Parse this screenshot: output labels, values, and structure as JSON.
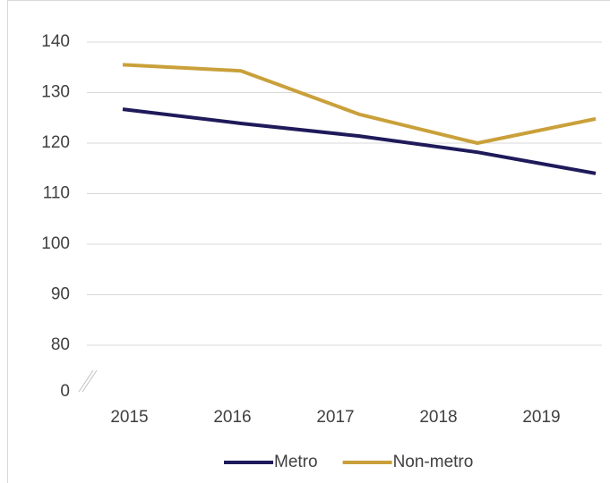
{
  "chart_data": {
    "type": "line",
    "categories": [
      "2015",
      "2016",
      "2017",
      "2018",
      "2019"
    ],
    "series": [
      {
        "name": "Metro",
        "color": "#1f1a5a",
        "values": [
          126.7,
          123.9,
          121.4,
          118.2,
          114.0
        ]
      },
      {
        "name": "Non-metro",
        "color": "#c9a03a",
        "values": [
          135.5,
          134.3,
          125.7,
          120.0,
          124.8
        ]
      }
    ],
    "ylim": [
      0,
      140
    ],
    "yticks": [
      0,
      80,
      90,
      100,
      110,
      120,
      130,
      140
    ],
    "axis_break": [
      0,
      80
    ],
    "grid": true,
    "legend": "bottom"
  }
}
